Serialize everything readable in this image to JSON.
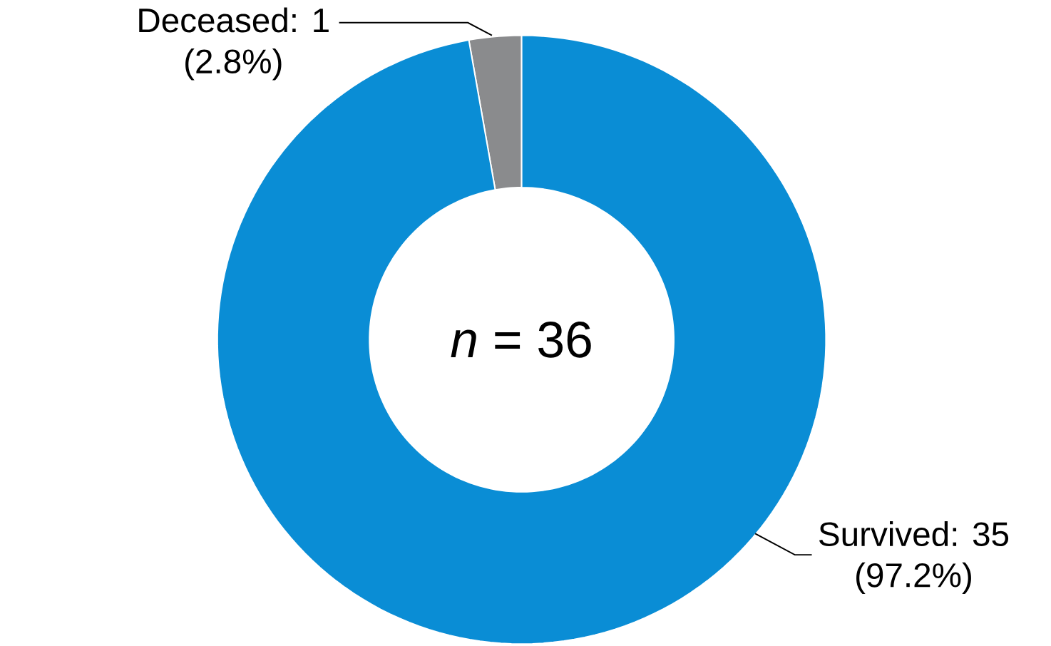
{
  "chart_data": {
    "type": "donut",
    "categories": [
      "Deceased: 1",
      "Survived: 35"
    ],
    "values": [
      1,
      35
    ],
    "colors": [
      "#8a8b8d",
      "#0a8dd5"
    ],
    "annotations": [
      "(2.8%)",
      "(97.2%)",
      "*n* = 36"
    ]
  }
}
